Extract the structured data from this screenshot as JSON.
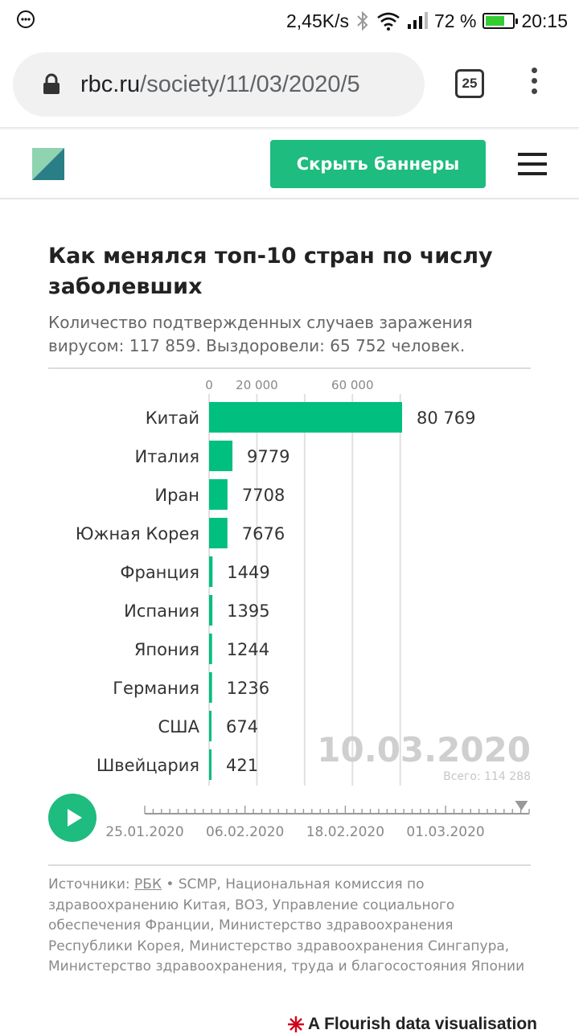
{
  "status_bar": {
    "speed": "2,45K/s",
    "battery_percent": "72 %",
    "battery_level": 0.72,
    "time": "20:15"
  },
  "browser": {
    "url_domain": "rbc.ru",
    "url_path": "/society/11/03/2020/5",
    "tab_count": "25"
  },
  "site_header": {
    "hide_banners_label": "Скрыть баннеры"
  },
  "chart_data": {
    "type": "bar",
    "orientation": "horizontal",
    "title": "Как менялся топ-10 стран по числу заболевших",
    "subtitle": "Количество подтвержденных случаев заражения вирусом: 117 859. Выздоровели: 65 752 человек.",
    "categories": [
      "Китай",
      "Италия",
      "Иран",
      "Южная Корея",
      "Франция",
      "Испания",
      "Япония",
      "Германия",
      "США",
      "Швейцария"
    ],
    "values": [
      80769,
      9779,
      7708,
      7676,
      1449,
      1395,
      1244,
      1236,
      674,
      421
    ],
    "value_labels": [
      "80 769",
      "9779",
      "7708",
      "7676",
      "1449",
      "1395",
      "1244",
      "1236",
      "674",
      "421"
    ],
    "x_ticks": [
      0,
      20000,
      40000,
      60000,
      80000
    ],
    "x_tick_labels": [
      "0",
      "20 000",
      "",
      "60 000",
      ""
    ],
    "xlim": [
      0,
      80769
    ],
    "grid": true,
    "bar_color": "#00bf7f",
    "current_date": "10.03.2020",
    "total_label": "Всего: 114 288"
  },
  "timeline": {
    "labels": [
      "25.01.2020",
      "06.02.2020",
      "18.02.2020",
      "01.03.2020"
    ],
    "progress": 0.98
  },
  "footer": {
    "sources_prefix": "Источники: ",
    "sources_link": "РБК",
    "sources_rest": " • SCMP, Национальная комиссия по здравоохранению Китая, ВОЗ, Управление социального обеспечения Франции, Министерство здравоохранения Республики Корея, Министерство здравоохранения Сингапура, Министерство здравоохранения, труда и благосостояния Японии",
    "flourish_credit": "A Flourish data visualisation"
  },
  "colors": {
    "accent": "#1ebc7e",
    "grid": "#e0e0e0",
    "date_watermark": "#cfcfcf"
  }
}
